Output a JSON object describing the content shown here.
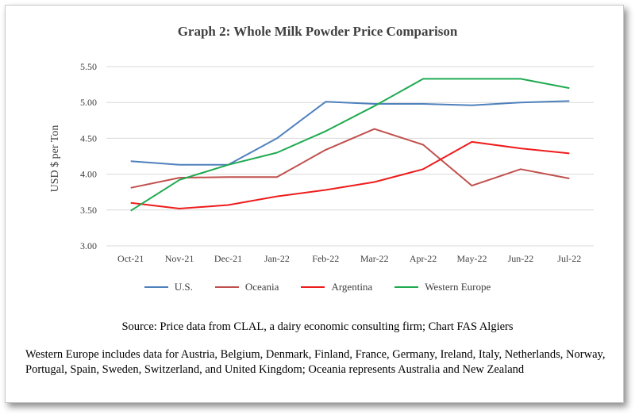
{
  "chart_data": {
    "type": "line",
    "title": "Graph 2: Whole Milk Powder Price Comparison",
    "ylabel": "USD $ per Ton",
    "xlabel": "",
    "categories": [
      "Oct-21",
      "Nov-21",
      "Dec-21",
      "Jan-22",
      "Feb-22",
      "Mar-22",
      "Apr-22",
      "May-22",
      "Jun-22",
      "Jul-22"
    ],
    "ylim": [
      3.0,
      5.5
    ],
    "yticks": [
      "3.00",
      "3.50",
      "4.00",
      "4.50",
      "5.00",
      "5.50"
    ],
    "grid": true,
    "legend_position": "bottom",
    "series": [
      {
        "name": "U.S.",
        "color": "#4f81bd",
        "values": [
          4.18,
          4.13,
          4.13,
          4.5,
          5.01,
          4.98,
          4.98,
          4.96,
          5.0,
          5.02
        ]
      },
      {
        "name": "Oceania",
        "color": "#c0504d",
        "values": [
          3.81,
          3.95,
          3.96,
          3.96,
          4.34,
          4.63,
          4.41,
          3.84,
          4.07,
          3.94
        ]
      },
      {
        "name": "Argentina",
        "color": "#ee1c1c",
        "values": [
          3.6,
          3.52,
          3.57,
          3.69,
          3.78,
          3.89,
          4.07,
          4.45,
          4.36,
          4.29
        ]
      },
      {
        "name": "Western Europe",
        "color": "#1faa50",
        "values": [
          3.49,
          3.92,
          4.13,
          4.3,
          4.6,
          4.95,
          5.33,
          5.33,
          5.33,
          5.2
        ]
      }
    ]
  },
  "source": "Source: Price data from CLAL, a dairy economic consulting firm; Chart FAS Algiers",
  "note": "Western Europe includes data for Austria, Belgium, Denmark, Finland, France, Germany, Ireland, Italy, Netherlands, Norway, Portugal, Spain, Sweden, Switzerland, and United Kingdom; Oceania represents Australia and New Zealand"
}
